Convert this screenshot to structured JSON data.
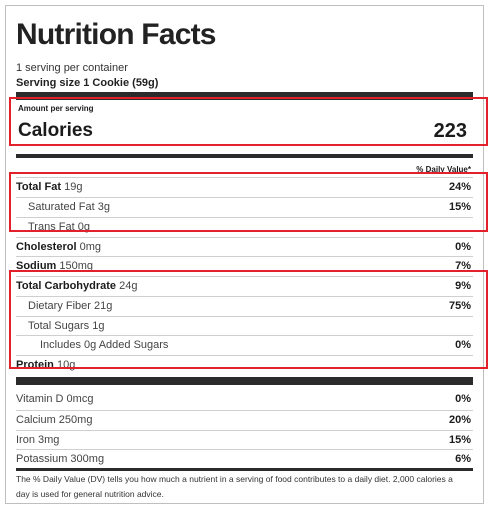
{
  "label": {
    "title": "Nutrition Facts",
    "servings_per_container": "1 serving per container",
    "serving_size": "Serving size 1 Cookie (59g)",
    "amount_per_serving": "Amount per serving",
    "calories_label": "Calories",
    "calories_value": "223",
    "dv_header": "% Daily Value*",
    "nutrients": [
      {
        "name": "Total Fat",
        "amount": "19g",
        "dv": "24%"
      },
      {
        "name": "Saturated Fat",
        "amount": "3g",
        "dv": "15%"
      },
      {
        "name": "Trans Fat",
        "amount": "0g",
        "dv": ""
      },
      {
        "name": "Cholesterol",
        "amount": "0mg",
        "dv": "0%"
      },
      {
        "name": "Sodium",
        "amount": "150mg",
        "dv": "7%"
      },
      {
        "name": "Total Carbohydrate",
        "amount": "24g",
        "dv": "9%"
      },
      {
        "name": "Dietary Fiber",
        "amount": "21g",
        "dv": "75%"
      },
      {
        "name": "Total Sugars",
        "amount": "1g",
        "dv": ""
      },
      {
        "name": "Includes 0g Added Sugars",
        "amount": "",
        "dv": "0%"
      },
      {
        "name": "Protein",
        "amount": "10g",
        "dv": ""
      }
    ],
    "vitamins": [
      {
        "name": "Vitamin D",
        "amount": "0mcg",
        "dv": "0%"
      },
      {
        "name": "Calcium",
        "amount": "250mg",
        "dv": "20%"
      },
      {
        "name": "Iron",
        "amount": "3mg",
        "dv": "15%"
      },
      {
        "name": "Potassium",
        "amount": "300mg",
        "dv": "6%"
      }
    ],
    "footnote": "The % Daily Value (DV) tells you how much a nutrient in a serving of food contributes to a daily diet. 2,000 calories a day is used for general nutrition advice."
  },
  "colors": {
    "highlight": "#e3212b",
    "rule": "#2b2b2b"
  }
}
